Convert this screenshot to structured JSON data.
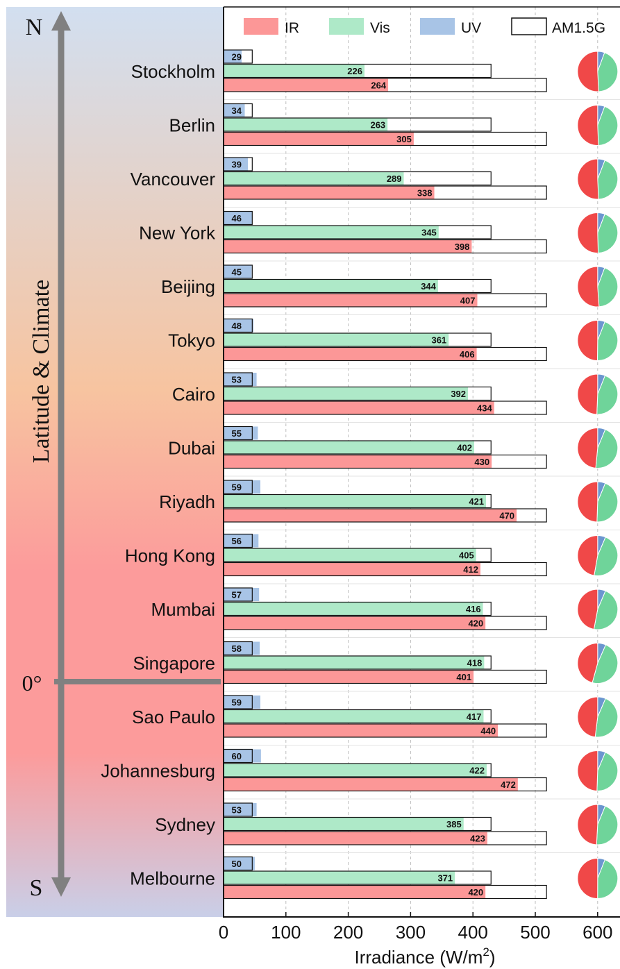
{
  "chart_data": {
    "type": "bar",
    "orientation": "horizontal",
    "xlabel": "Irradiance (W/m",
    "xlabel_sup": "2",
    "xlabel_close": ")",
    "xlim": [
      0,
      630
    ],
    "xticks": [
      0,
      100,
      200,
      300,
      400,
      500,
      600
    ],
    "grid": "vertical dashed",
    "legend_position": "top",
    "categories": [
      "Stockholm",
      "Berlin",
      "Vancouver",
      "New York",
      "Beijing",
      "Tokyo",
      "Cairo",
      "Dubai",
      "Riyadh",
      "Hong Kong",
      "Mumbai",
      "Singapore",
      "Sao Paulo",
      "Johannesburg",
      "Sydney",
      "Melbourne"
    ],
    "series": [
      {
        "name": "IR",
        "color": "#fc9797",
        "values": [
          264,
          305,
          338,
          398,
          407,
          406,
          434,
          430,
          470,
          412,
          420,
          401,
          440,
          472,
          423,
          420
        ]
      },
      {
        "name": "Vis",
        "color": "#aee9c8",
        "values": [
          226,
          263,
          289,
          345,
          344,
          361,
          392,
          402,
          421,
          405,
          416,
          418,
          417,
          422,
          385,
          371
        ]
      },
      {
        "name": "UV",
        "color": "#a8c4e6",
        "values": [
          29,
          34,
          39,
          46,
          45,
          48,
          53,
          55,
          59,
          56,
          57,
          58,
          59,
          60,
          53,
          50
        ]
      },
      {
        "name": "AM1.5G",
        "color": "#ffffff",
        "reference": {
          "IR": 518,
          "Vis": 429,
          "UV": 46
        }
      }
    ],
    "pie": {
      "position_x_value": 600,
      "colors": {
        "IR": "#f04848",
        "Vis": "#6fd49a",
        "UV": "#6b96cf"
      }
    },
    "side_axis": {
      "title": "Latitude & Climate",
      "top_label": "N",
      "bottom_label": "S",
      "equator_label": "0°",
      "equator_after_index": 11
    },
    "colors": {
      "band_top": "#d2dff0",
      "band_mid": "#f7c4a0",
      "band_low": "#fc9b9b",
      "band_bottom": "#c9cfe8",
      "arrow": "#808080"
    }
  }
}
